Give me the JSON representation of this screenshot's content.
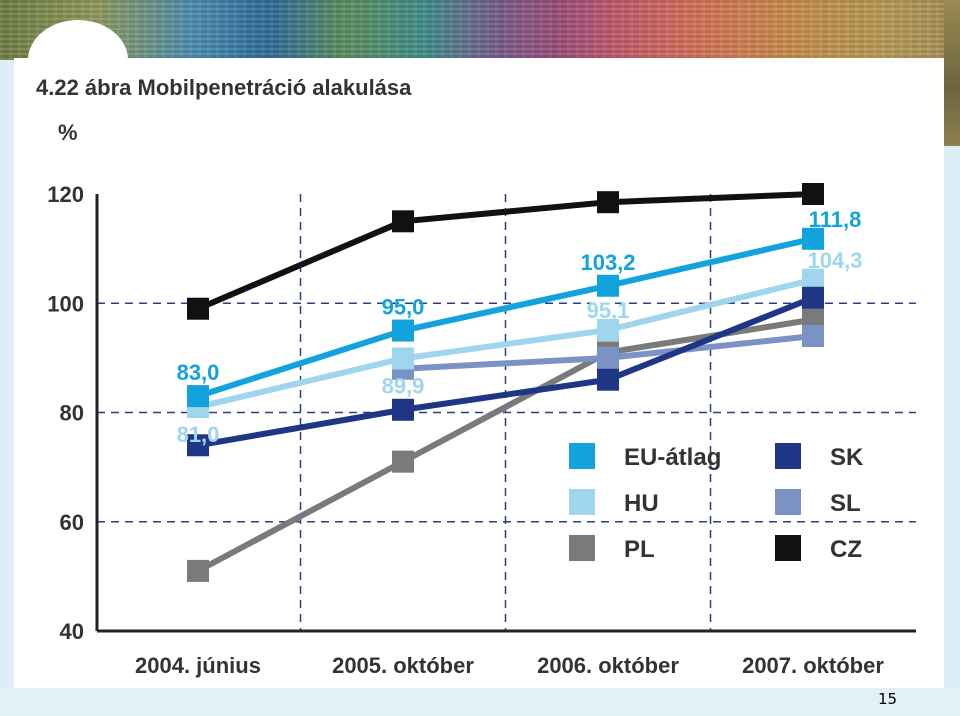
{
  "page_number": "15",
  "colors": {
    "background": "#dceef7",
    "slide": "#ffffff",
    "gridline": "#2a3f8a"
  },
  "chart_data": {
    "type": "line",
    "title": "4.22 ábra Mobilpenetráció alakulása",
    "figure_number": "4.22 ábra",
    "title_text": "Mobilpenetráció alakulása",
    "ylabel": "%",
    "xlabel": "",
    "categories": [
      "2004. június",
      "2005. október",
      "2006. október",
      "2007. október"
    ],
    "ylim": [
      40,
      120
    ],
    "yticks": [
      40,
      60,
      80,
      100,
      120
    ],
    "grid": "dashed",
    "legend_position": "lower-right",
    "series": [
      {
        "name": "CZ",
        "color": "#111111",
        "values": [
          99,
          115,
          118.5,
          120
        ]
      },
      {
        "name": "EU-átlag",
        "color": "#12a3dc",
        "values": [
          83.0,
          95.0,
          103.2,
          111.8
        ]
      },
      {
        "name": "HU",
        "color": "#9fd6ee",
        "values": [
          81.0,
          89.9,
          95.1,
          104.3
        ]
      },
      {
        "name": "SL",
        "color": "#7a93c4",
        "values": [
          null,
          88,
          90,
          94
        ]
      },
      {
        "name": "SK",
        "color": "#1f3585",
        "values": [
          74,
          80.5,
          86,
          101
        ]
      },
      {
        "name": "PL",
        "color": "#7a7a7a",
        "values": [
          51,
          71,
          91,
          97
        ]
      }
    ],
    "data_labels": [
      {
        "text": "83,0",
        "series": "EU-átlag",
        "index": 0,
        "color": "#12a3dc"
      },
      {
        "text": "95,0",
        "series": "EU-átlag",
        "index": 1,
        "color": "#12a3dc"
      },
      {
        "text": "103,2",
        "series": "EU-átlag",
        "index": 2,
        "color": "#12a3dc"
      },
      {
        "text": "111,8",
        "series": "EU-átlag",
        "index": 3,
        "color": "#12a3dc"
      },
      {
        "text": "81,0",
        "series": "HU",
        "index": 0,
        "color": "#9fd6ee"
      },
      {
        "text": "89,9",
        "series": "HU",
        "index": 1,
        "color": "#9fd6ee"
      },
      {
        "text": "95,1",
        "series": "HU",
        "index": 2,
        "color": "#9fd6ee"
      },
      {
        "text": "104,3",
        "series": "HU",
        "index": 3,
        "color": "#9fd6ee"
      }
    ],
    "legend": [
      {
        "label": "EU-átlag",
        "color": "#12a3dc"
      },
      {
        "label": "SK",
        "color": "#1f3585"
      },
      {
        "label": "HU",
        "color": "#9fd6ee"
      },
      {
        "label": "SL",
        "color": "#7a93c4"
      },
      {
        "label": "PL",
        "color": "#7a7a7a"
      },
      {
        "label": "CZ",
        "color": "#111111"
      }
    ]
  }
}
